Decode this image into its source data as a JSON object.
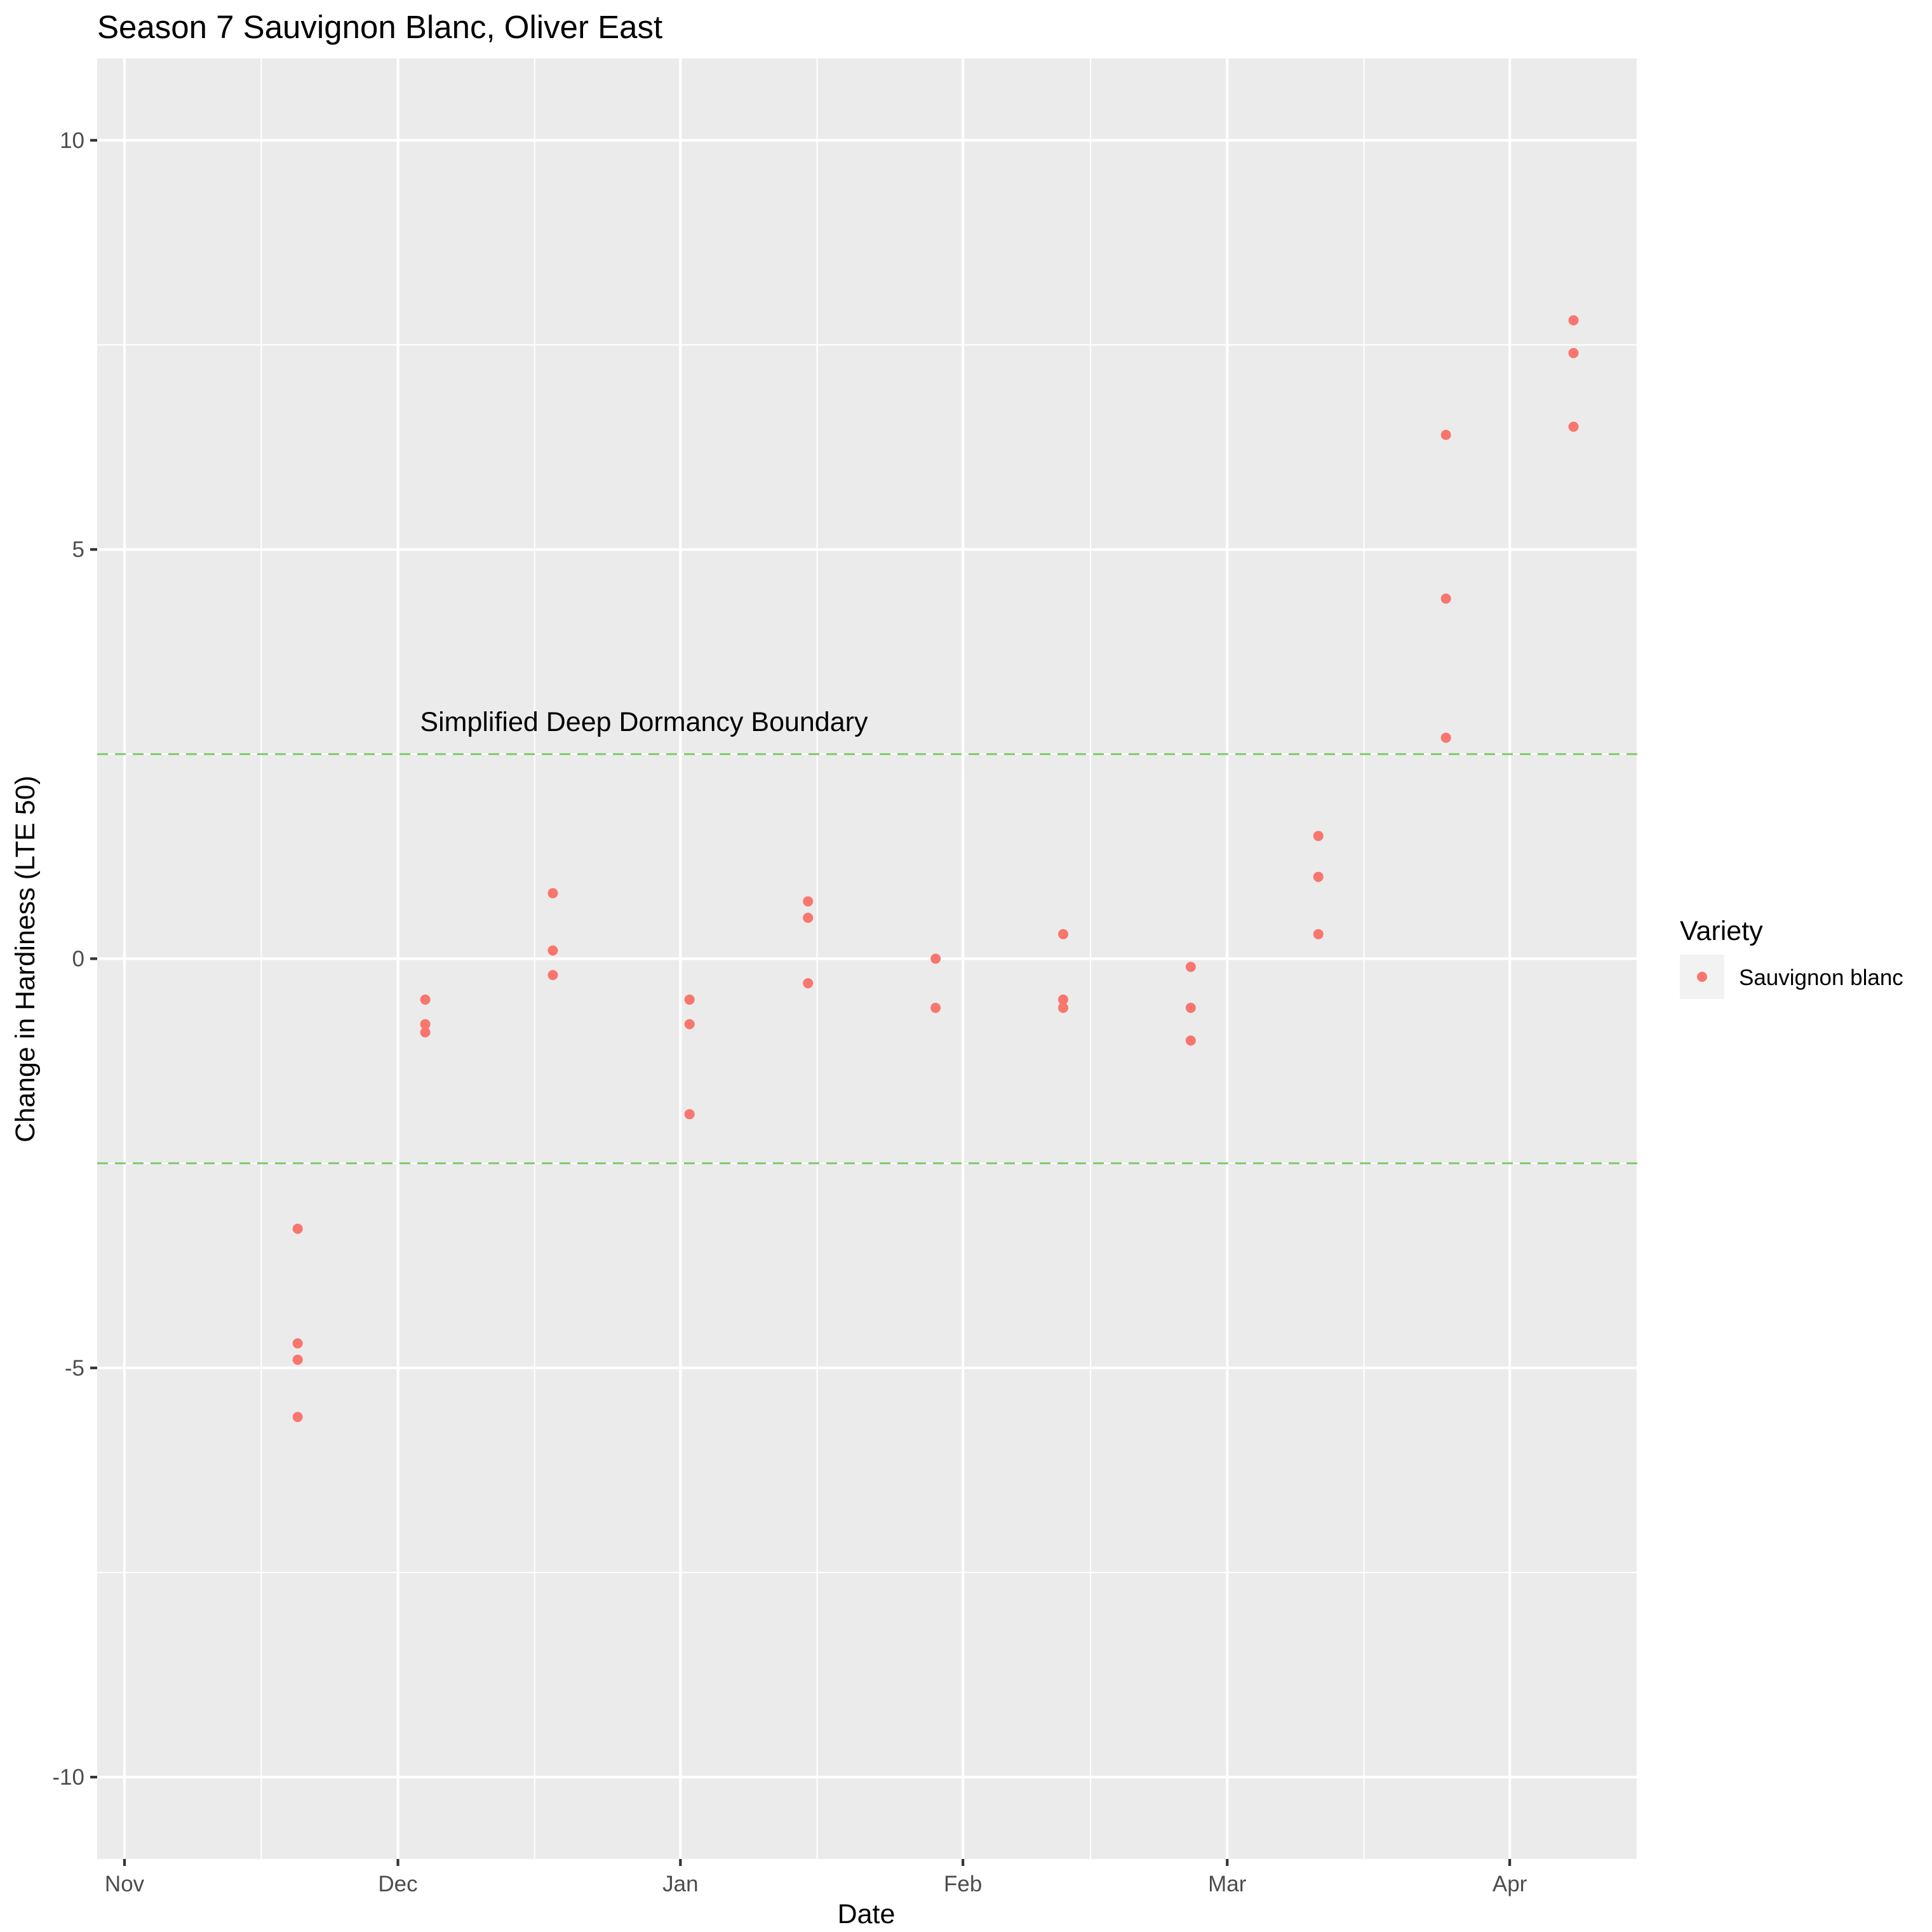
{
  "chart_data": {
    "type": "scatter",
    "title": "Season 7 Sauvignon Blanc, Oliver East",
    "xlabel": "Date",
    "ylabel": "Change in Hardiness (LTE 50)",
    "x_axis_type": "date",
    "xlim": [
      "2019-10-29",
      "2020-04-15"
    ],
    "ylim": [
      -11,
      11
    ],
    "x_ticks": [
      {
        "date": "2019-11-01",
        "label": "Nov"
      },
      {
        "date": "2019-12-01",
        "label": "Dec"
      },
      {
        "date": "2020-01-01",
        "label": "Jan"
      },
      {
        "date": "2020-02-01",
        "label": "Feb"
      },
      {
        "date": "2020-03-01",
        "label": "Mar"
      },
      {
        "date": "2020-04-01",
        "label": "Apr"
      }
    ],
    "x_minor_ticks": [
      "2019-11-16",
      "2019-12-16",
      "2020-01-16",
      "2020-02-15",
      "2020-03-16",
      "2020-04-15"
    ],
    "y_ticks": [
      {
        "value": 10,
        "label": "10"
      },
      {
        "value": 5,
        "label": "5"
      },
      {
        "value": 0,
        "label": "0"
      },
      {
        "value": -5,
        "label": "-5"
      },
      {
        "value": -10,
        "label": "-10"
      }
    ],
    "y_minor_ticks": [
      7.5,
      2.5,
      -2.5,
      -7.5
    ],
    "grid": true,
    "reference_lines": [
      {
        "y": 2.5,
        "color": "#7fcd6a",
        "style": "dashed"
      },
      {
        "y": -2.5,
        "color": "#7fcd6a",
        "style": "dashed"
      }
    ],
    "annotation": {
      "text": "Simplified Deep Dormancy Boundary",
      "x": "2019-12-28",
      "y": 2.9
    },
    "legend": {
      "title": "Variety",
      "position": "right"
    },
    "series": [
      {
        "name": "Sauvignon blanc",
        "color": "#f8766d",
        "points": [
          {
            "x": "2019-11-20",
            "y": -3.3
          },
          {
            "x": "2019-11-20",
            "y": -4.7
          },
          {
            "x": "2019-11-20",
            "y": -4.9
          },
          {
            "x": "2019-11-20",
            "y": -5.6
          },
          {
            "x": "2019-12-04",
            "y": -0.5
          },
          {
            "x": "2019-12-04",
            "y": -0.8
          },
          {
            "x": "2019-12-04",
            "y": -0.9
          },
          {
            "x": "2019-12-18",
            "y": 0.8
          },
          {
            "x": "2019-12-18",
            "y": 0.1
          },
          {
            "x": "2019-12-18",
            "y": -0.2
          },
          {
            "x": "2020-01-02",
            "y": -0.5
          },
          {
            "x": "2020-01-02",
            "y": -0.8
          },
          {
            "x": "2020-01-02",
            "y": -1.9
          },
          {
            "x": "2020-01-15",
            "y": 0.7
          },
          {
            "x": "2020-01-15",
            "y": 0.5
          },
          {
            "x": "2020-01-15",
            "y": -0.3
          },
          {
            "x": "2020-01-29",
            "y": 0.0
          },
          {
            "x": "2020-01-29",
            "y": -0.6
          },
          {
            "x": "2020-02-12",
            "y": 0.3
          },
          {
            "x": "2020-02-12",
            "y": -0.5
          },
          {
            "x": "2020-02-12",
            "y": -0.6
          },
          {
            "x": "2020-02-26",
            "y": -0.1
          },
          {
            "x": "2020-02-26",
            "y": -0.6
          },
          {
            "x": "2020-02-26",
            "y": -1.0
          },
          {
            "x": "2020-03-11",
            "y": 1.5
          },
          {
            "x": "2020-03-11",
            "y": 1.0
          },
          {
            "x": "2020-03-11",
            "y": 0.3
          },
          {
            "x": "2020-03-25",
            "y": 6.4
          },
          {
            "x": "2020-03-25",
            "y": 4.4
          },
          {
            "x": "2020-03-25",
            "y": 2.7
          },
          {
            "x": "2020-04-08",
            "y": 7.8
          },
          {
            "x": "2020-04-08",
            "y": 7.4
          },
          {
            "x": "2020-04-08",
            "y": 6.5
          }
        ]
      }
    ]
  }
}
